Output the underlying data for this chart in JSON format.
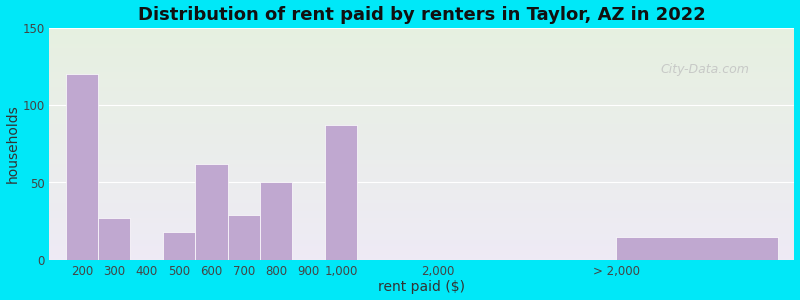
{
  "title": "Distribution of rent paid by renters in Taylor, AZ in 2022",
  "xlabel": "rent paid ($)",
  "ylabel": "households",
  "bar_color": "#c0a8d0",
  "bar_edgecolor": "#ffffff",
  "background_outer": "#00e8f8",
  "background_plot_top": "#e6f0e0",
  "background_plot_bottom": "#eeeaf5",
  "ylim": [
    0,
    150
  ],
  "yticks": [
    0,
    50,
    100,
    150
  ],
  "title_fontsize": 13,
  "label_fontsize": 10,
  "tick_fontsize": 8.5,
  "watermark": "City-Data.com",
  "bar_positions": [
    0,
    1,
    2,
    3,
    4,
    5,
    6,
    7,
    8,
    11,
    17
  ],
  "bar_widths": [
    1,
    1,
    1,
    1,
    1,
    1,
    1,
    1,
    1,
    1,
    5
  ],
  "bar_values": [
    120,
    27,
    0,
    18,
    62,
    29,
    50,
    0,
    87,
    0,
    15
  ],
  "tick_positions": [
    0.5,
    1.5,
    2.5,
    3.5,
    4.5,
    5.5,
    6.5,
    7.5,
    8.5,
    11.5,
    17
  ],
  "tick_labels": [
    "200",
    "300",
    "400",
    "500",
    "600",
    "700",
    "800",
    "900",
    "1,000",
    "2,000",
    "> 2,000"
  ]
}
